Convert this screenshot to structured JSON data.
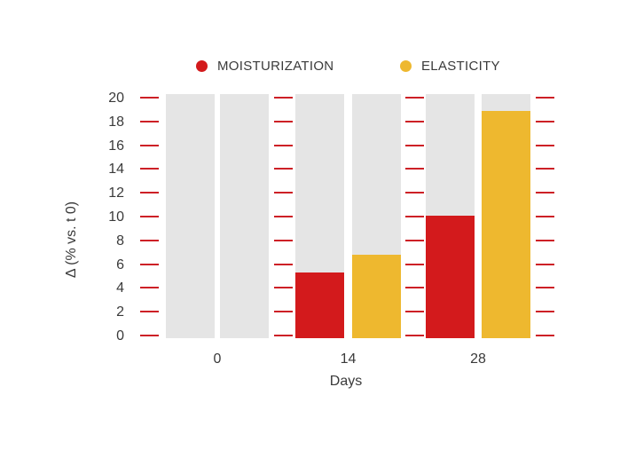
{
  "colors": {
    "moisturization": "#d31a1c",
    "elasticity": "#eeb82f",
    "track": "#e5e5e5",
    "tick": "#cd2026",
    "text": "#3a3a3a",
    "background": "#ffffff"
  },
  "legend": {
    "items": [
      {
        "label": "MOISTURIZATION",
        "color": "#d31a1c"
      },
      {
        "label": "ELASTICITY",
        "color": "#eeb82f"
      }
    ],
    "position": "top"
  },
  "chart_data": {
    "type": "bar",
    "categories": [
      "0",
      "14",
      "28"
    ],
    "series": [
      {
        "name": "MOISTURIZATION",
        "color": "#d31a1c",
        "values": [
          0,
          5.5,
          10.3
        ]
      },
      {
        "name": "ELASTICITY",
        "color": "#eeb82f",
        "values": [
          0,
          7,
          19.1
        ]
      }
    ],
    "title": "",
    "xlabel": "Days",
    "ylabel": "Δ (% vs. t 0)",
    "ylim": [
      0,
      20
    ],
    "ytick_step": 2,
    "y_tick_labels": [
      "0",
      "2",
      "4",
      "6",
      "8",
      "10",
      "12",
      "14",
      "16",
      "18",
      "20"
    ],
    "grid": false,
    "background_track_bars": true,
    "tick_style": "red horizontal dashes in columns between groups",
    "legend_position": "top"
  }
}
